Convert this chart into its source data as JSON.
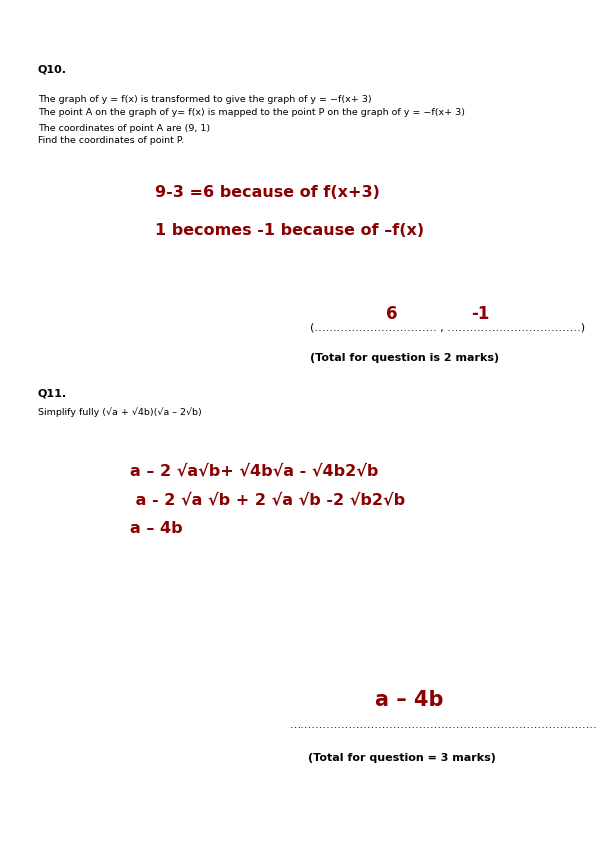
{
  "bg_color": "#ffffff",
  "q10_label": "Q10.",
  "q10_line1": "The graph of y = f(x) is transformed to give the graph of y = −f(x+ 3)",
  "q10_line2": "The point A on the graph of y= f(x) is mapped to the point P on the graph of y = −f(x+ 3)",
  "q10_line3": "The coordinates of point A are (9, 1)",
  "q10_line4": "Find the coordinates of point P.",
  "red_line1": "9-3 =6 because of f(x+3)",
  "red_line2": "1 becomes -1 because of –f(x)",
  "answer_6": "6",
  "answer_neg1": "-1",
  "answer_dots": "(…………………………… , ………………………………)",
  "total_q10": "(Total for question is 2 marks)",
  "q11_label": "Q11.",
  "q11_line1": "Simplify fully (√a + √4b)(√a – 2√b)",
  "red_work1": "a – 2 √a√b+ √4b√a - √4b2√b",
  "red_work2": " a - 2 √a √b + 2 √a √b -2 √b2√b",
  "red_work3": "a – 4b",
  "answer2_label": "a – 4b",
  "answer2_dots": "………………………………………………………………………………………",
  "total_q11": "(Total for question = 3 marks)"
}
